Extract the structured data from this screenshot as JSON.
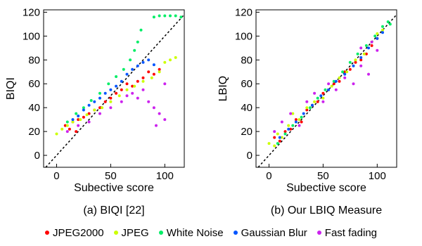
{
  "chart_data": [
    {
      "type": "scatter",
      "caption": "(a)  BIQI [22]",
      "xlabel": "Subective score",
      "ylabel": "BIQI",
      "xlim": [
        -12,
        118
      ],
      "ylim": [
        -10,
        122
      ],
      "xticks": [
        0,
        50,
        100
      ],
      "yticks": [
        0,
        20,
        40,
        60,
        80,
        100,
        120
      ],
      "series": [
        {
          "name": "JPEG2000",
          "color": "#ff0000",
          "points": [
            [
              8,
              25
            ],
            [
              12,
              22
            ],
            [
              15,
              28
            ],
            [
              18,
              20
            ],
            [
              20,
              30
            ],
            [
              25,
              32
            ],
            [
              30,
              35
            ],
            [
              35,
              38
            ],
            [
              40,
              40
            ],
            [
              45,
              45
            ],
            [
              50,
              48
            ],
            [
              55,
              52
            ],
            [
              60,
              55
            ],
            [
              65,
              60
            ],
            [
              70,
              58
            ],
            [
              75,
              62
            ],
            [
              80,
              65
            ],
            [
              85,
              70
            ],
            [
              90,
              68
            ],
            [
              95,
              72
            ]
          ]
        },
        {
          "name": "JPEG",
          "color": "#ccff00",
          "points": [
            [
              0,
              18
            ],
            [
              5,
              22
            ],
            [
              10,
              25
            ],
            [
              15,
              28
            ],
            [
              22,
              30
            ],
            [
              28,
              34
            ],
            [
              35,
              38
            ],
            [
              42,
              40
            ],
            [
              50,
              45
            ],
            [
              58,
              50
            ],
            [
              65,
              55
            ],
            [
              72,
              58
            ],
            [
              80,
              62
            ],
            [
              88,
              65
            ],
            [
              95,
              70
            ],
            [
              100,
              78
            ],
            [
              105,
              80
            ],
            [
              110,
              82
            ]
          ]
        },
        {
          "name": "White Noise",
          "color": "#00ee66",
          "points": [
            [
              10,
              28
            ],
            [
              18,
              35
            ],
            [
              25,
              40
            ],
            [
              32,
              46
            ],
            [
              40,
              52
            ],
            [
              48,
              60
            ],
            [
              55,
              66
            ],
            [
              62,
              72
            ],
            [
              68,
              80
            ],
            [
              72,
              88
            ],
            [
              75,
              95
            ],
            [
              78,
              105
            ],
            [
              90,
              116
            ],
            [
              95,
              117
            ],
            [
              100,
              117
            ],
            [
              105,
              117
            ],
            [
              110,
              117
            ],
            [
              115,
              116
            ]
          ]
        },
        {
          "name": "Gaussian Blur",
          "color": "#0055ff",
          "points": [
            [
              15,
              30
            ],
            [
              20,
              33
            ],
            [
              25,
              38
            ],
            [
              30,
              42
            ],
            [
              35,
              45
            ],
            [
              40,
              48
            ],
            [
              45,
              52
            ],
            [
              50,
              55
            ],
            [
              55,
              58
            ],
            [
              60,
              62
            ],
            [
              65,
              68
            ],
            [
              70,
              72
            ],
            [
              75,
              75
            ],
            [
              80,
              78
            ],
            [
              85,
              80
            ],
            [
              90,
              76
            ]
          ]
        },
        {
          "name": "Fast fading",
          "color": "#cc22ee",
          "points": [
            [
              10,
              20
            ],
            [
              20,
              25
            ],
            [
              30,
              28
            ],
            [
              40,
              35
            ],
            [
              50,
              40
            ],
            [
              60,
              45
            ],
            [
              65,
              50
            ],
            [
              70,
              52
            ],
            [
              75,
              48
            ],
            [
              80,
              55
            ],
            [
              85,
              45
            ],
            [
              90,
              40
            ],
            [
              95,
              35
            ],
            [
              100,
              30
            ],
            [
              92,
              25
            ],
            [
              100,
              60
            ]
          ]
        }
      ]
    },
    {
      "type": "scatter",
      "caption": "(b)  Our LBIQ Measure",
      "xlabel": "Subective score",
      "ylabel": "LBIQ",
      "xlim": [
        -12,
        118
      ],
      "ylim": [
        -10,
        122
      ],
      "xticks": [
        0,
        50,
        100
      ],
      "yticks": [
        0,
        20,
        40,
        60,
        80,
        100,
        120
      ],
      "series": [
        {
          "name": "JPEG2000",
          "color": "#ff0000",
          "points": [
            [
              5,
              15
            ],
            [
              10,
              12
            ],
            [
              15,
              20
            ],
            [
              20,
              22
            ],
            [
              25,
              30
            ],
            [
              30,
              28
            ],
            [
              35,
              38
            ],
            [
              40,
              42
            ],
            [
              45,
              45
            ],
            [
              50,
              52
            ],
            [
              55,
              55
            ],
            [
              60,
              60
            ],
            [
              65,
              62
            ],
            [
              70,
              70
            ],
            [
              75,
              72
            ],
            [
              80,
              78
            ],
            [
              85,
              80
            ],
            [
              90,
              85
            ],
            [
              95,
              92
            ],
            [
              100,
              98
            ]
          ]
        },
        {
          "name": "JPEG",
          "color": "#ccff00",
          "points": [
            [
              0,
              10
            ],
            [
              5,
              8
            ],
            [
              8,
              18
            ],
            [
              12,
              15
            ],
            [
              18,
              25
            ],
            [
              22,
              35
            ],
            [
              28,
              30
            ],
            [
              35,
              40
            ],
            [
              42,
              45
            ],
            [
              50,
              48
            ],
            [
              58,
              58
            ],
            [
              65,
              65
            ],
            [
              72,
              70
            ],
            [
              80,
              80
            ],
            [
              88,
              85
            ],
            [
              95,
              95
            ],
            [
              100,
              102
            ],
            [
              105,
              105
            ]
          ]
        },
        {
          "name": "White Noise",
          "color": "#00ee66",
          "points": [
            [
              8,
              10
            ],
            [
              15,
              18
            ],
            [
              22,
              25
            ],
            [
              30,
              32
            ],
            [
              38,
              40
            ],
            [
              45,
              48
            ],
            [
              52,
              55
            ],
            [
              60,
              62
            ],
            [
              68,
              70
            ],
            [
              75,
              78
            ],
            [
              82,
              85
            ],
            [
              90,
              92
            ],
            [
              98,
              100
            ],
            [
              105,
              108
            ],
            [
              110,
              112
            ],
            [
              112,
              110
            ]
          ]
        },
        {
          "name": "Gaussian Blur",
          "color": "#0055ff",
          "points": [
            [
              10,
              15
            ],
            [
              18,
              22
            ],
            [
              25,
              28
            ],
            [
              32,
              35
            ],
            [
              40,
              42
            ],
            [
              48,
              50
            ],
            [
              55,
              55
            ],
            [
              62,
              62
            ],
            [
              70,
              68
            ],
            [
              78,
              75
            ],
            [
              85,
              82
            ],
            [
              92,
              90
            ],
            [
              100,
              98
            ],
            [
              105,
              103
            ]
          ]
        },
        {
          "name": "Fast fading",
          "color": "#cc22ee",
          "points": [
            [
              5,
              20
            ],
            [
              12,
              28
            ],
            [
              20,
              35
            ],
            [
              28,
              25
            ],
            [
              35,
              45
            ],
            [
              42,
              52
            ],
            [
              50,
              45
            ],
            [
              55,
              60
            ],
            [
              62,
              55
            ],
            [
              70,
              65
            ],
            [
              78,
              60
            ],
            [
              85,
              75
            ],
            [
              92,
              68
            ],
            [
              100,
              88
            ],
            [
              95,
              95
            ],
            [
              85,
              90
            ]
          ]
        }
      ]
    }
  ],
  "legend": [
    {
      "label": "JPEG2000",
      "color": "#ff0000"
    },
    {
      "label": "JPEG",
      "color": "#ccff00"
    },
    {
      "label": "White Noise",
      "color": "#00ee66"
    },
    {
      "label": "Gaussian Blur",
      "color": "#0055ff"
    },
    {
      "label": "Fast fading",
      "color": "#cc22ee"
    }
  ]
}
